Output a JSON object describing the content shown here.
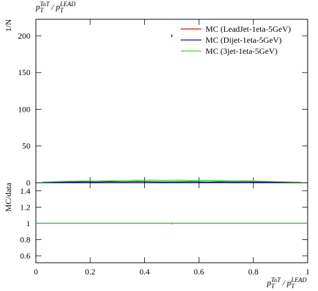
{
  "chart_data": [
    {
      "type": "line",
      "title": [
        {
          "text": "p"
        },
        {
          "text": "T",
          "shift": "sub"
        },
        {
          "text": "ToT",
          "shift": "sup"
        },
        {
          "text": " / "
        },
        {
          "text": "p"
        },
        {
          "text": "T",
          "shift": "sub"
        },
        {
          "text": "LEAD",
          "shift": "sup"
        }
      ],
      "ylabel": "1/N",
      "xlim": [
        0,
        1
      ],
      "xticks": [
        0,
        0.2,
        0.4,
        0.6,
        0.8,
        1
      ],
      "ylim": [
        0,
        222.5
      ],
      "yticks": [
        0,
        50,
        100,
        150,
        200
      ],
      "legend": "upper right",
      "series": [
        {
          "name": "MC (LeadJet-1eta-5GeV)",
          "color": "#cc0000",
          "marker": "point",
          "x": [
            0.5
          ],
          "values": [
            200
          ]
        },
        {
          "name": "MC (Dijet-1eta-5GeV)",
          "color": "#0000cc",
          "x": [
            0.025,
            0.075,
            0.125,
            0.175,
            0.225,
            0.275,
            0.325,
            0.375,
            0.425,
            0.475,
            0.525,
            0.575,
            0.625,
            0.675,
            0.725,
            0.775,
            0.825,
            0.875,
            0.925,
            0.975
          ],
          "values": [
            0.5,
            1.0,
            0.8,
            1.2,
            0.9,
            1.4,
            1.1,
            1.5,
            1.3,
            1.0,
            1.2,
            1.4,
            0.9,
            1.3,
            1.0,
            1.1,
            0.8,
            1.0,
            0.7,
            0.4
          ]
        },
        {
          "name": "MC (3jet-1eta-5GeV)",
          "color": "#33cc33",
          "x": [
            0.025,
            0.075,
            0.125,
            0.175,
            0.225,
            0.275,
            0.325,
            0.375,
            0.425,
            0.475,
            0.525,
            0.575,
            0.625,
            0.675,
            0.725,
            0.775,
            0.825,
            0.875,
            0.925,
            0.975
          ],
          "values": [
            0.8,
            1.5,
            2.0,
            2.4,
            2.2,
            2.8,
            3.0,
            3.4,
            3.6,
            3.2,
            3.5,
            3.1,
            3.3,
            2.9,
            2.6,
            2.7,
            2.0,
            1.6,
            1.2,
            0.6
          ]
        }
      ]
    },
    {
      "type": "line",
      "ylabel": "MC/data",
      "xlabel": [
        {
          "text": "p"
        },
        {
          "text": "T",
          "shift": "sub"
        },
        {
          "text": "ToT",
          "shift": "sup"
        },
        {
          "text": " / "
        },
        {
          "text": "p"
        },
        {
          "text": "T",
          "shift": "sub"
        },
        {
          "text": "LEAD",
          "shift": "sup"
        }
      ],
      "xlim": [
        0,
        1
      ],
      "xticks": [
        0,
        0.2,
        0.4,
        0.6,
        0.8,
        1
      ],
      "ylim": [
        0.515,
        1.5
      ],
      "yticks": [
        0.6,
        0.8,
        1,
        1.2,
        1.4
      ],
      "series": [
        {
          "color": "#0000cc",
          "x": [
            0,
            1
          ],
          "values": [
            1,
            1
          ]
        },
        {
          "color": "#33cc33",
          "x": [
            0,
            1
          ],
          "values": [
            1,
            1
          ]
        },
        {
          "color": "#ff9900",
          "marker": "point",
          "x": [
            0.5
          ],
          "values": [
            1
          ]
        }
      ]
    }
  ]
}
